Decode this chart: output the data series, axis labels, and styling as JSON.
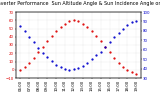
{
  "title": "Solar PV/Inverter Performance  Sun Altitude Angle & Sun Incidence Angle on PV Panels",
  "x_hours": [
    6.0,
    6.5,
    7.0,
    7.5,
    8.0,
    8.5,
    9.0,
    9.5,
    10.0,
    10.5,
    11.0,
    11.5,
    12.0,
    12.5,
    13.0,
    13.5,
    14.0,
    14.5,
    15.0,
    15.5,
    16.0,
    16.5,
    17.0,
    17.5,
    18.0,
    18.5,
    19.0
  ],
  "sun_altitude": [
    0,
    3,
    8,
    14,
    21,
    28,
    35,
    41,
    47,
    52,
    56,
    59,
    60,
    59,
    56,
    52,
    47,
    41,
    35,
    28,
    21,
    14,
    8,
    3,
    0,
    -3,
    -5
  ],
  "sun_incidence": [
    85,
    80,
    74,
    68,
    62,
    57,
    52,
    48,
    44,
    42,
    40,
    39,
    40,
    41,
    43,
    46,
    50,
    54,
    58,
    63,
    68,
    73,
    78,
    82,
    86,
    89,
    90
  ],
  "red_color": "#dd0000",
  "blue_color": "#0000cc",
  "bg_color": "#ffffff",
  "ylim_left": [
    -10,
    70
  ],
  "ylim_right": [
    30,
    100
  ],
  "xlim": [
    5.5,
    19.5
  ],
  "x_tick_vals": [
    6,
    7,
    8,
    9,
    10,
    11,
    12,
    13,
    14,
    15,
    16,
    17,
    18,
    19
  ],
  "yticks_left": [
    -10,
    0,
    10,
    20,
    30,
    40,
    50,
    60,
    70
  ],
  "yticks_right": [
    30,
    40,
    50,
    60,
    70,
    80,
    90,
    100
  ],
  "title_fontsize": 3.5,
  "tick_fontsize": 2.8,
  "marker_size": 1.2,
  "grid_color": "#aaaaaa",
  "grid_alpha": 0.6,
  "grid_linewidth": 0.3
}
